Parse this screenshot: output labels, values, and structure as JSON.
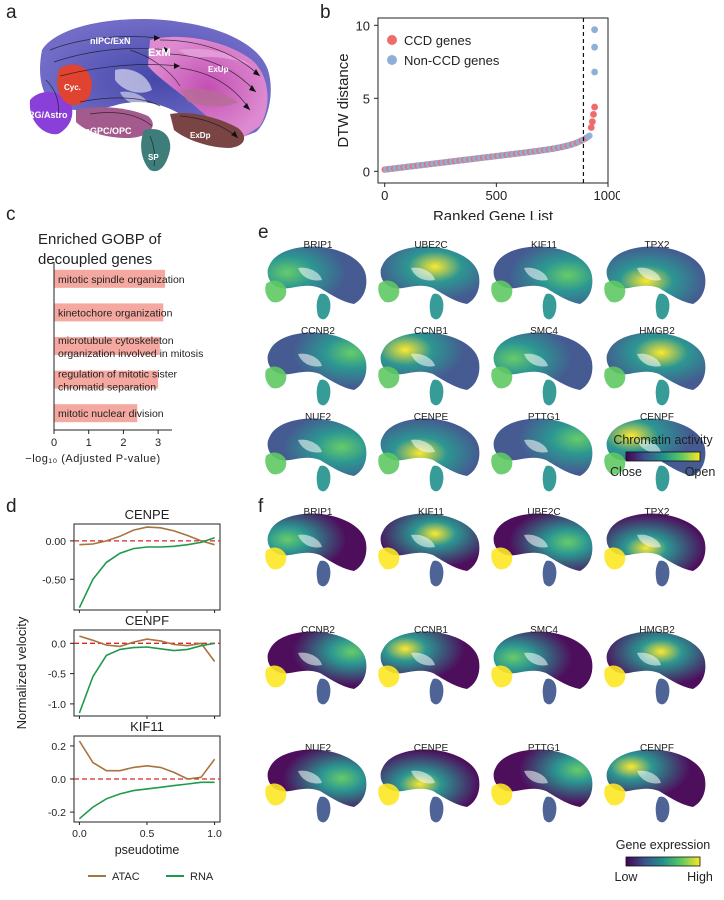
{
  "panels": {
    "a": {
      "letter": "a",
      "labels": [
        "nIPC/ExN",
        "ExM",
        "ExUp",
        "Cyc.",
        "RG/Astro",
        "mGPC/OPC",
        "ExDp",
        "SP"
      ]
    },
    "b": {
      "letter": "b"
    },
    "c": {
      "letter": "c"
    },
    "d": {
      "letter": "d"
    },
    "e": {
      "letter": "e"
    },
    "f": {
      "letter": "f"
    }
  },
  "colors": {
    "ccd": "#ee6b6b",
    "non_ccd": "#8eb0d8",
    "go_bar": "#f4a8a0",
    "atac": "#a8733e",
    "rna": "#1f9a4b",
    "zero_line": "#d62728"
  },
  "chart_data": [
    {
      "id": "b",
      "type": "scatter",
      "title": "",
      "xlabel": "Ranked Gene List",
      "ylabel": "DTW distance",
      "xlim": [
        -30,
        1000
      ],
      "ylim": [
        -0.8,
        10.5
      ],
      "xticks": [
        0,
        500,
        1000
      ],
      "yticks": [
        0,
        5,
        10
      ],
      "legend": [
        "CCD genes",
        "Non-CCD genes"
      ],
      "threshold_x": 890,
      "outliers": [
        {
          "series": "Non-CCD genes",
          "x": 940,
          "y": 9.7
        },
        {
          "series": "Non-CCD genes",
          "x": 940,
          "y": 8.5
        },
        {
          "series": "Non-CCD genes",
          "x": 940,
          "y": 6.8
        },
        {
          "series": "CCD genes",
          "x": 940,
          "y": 4.4
        },
        {
          "series": "CCD genes",
          "x": 935,
          "y": 3.9
        },
        {
          "series": "CCD genes",
          "x": 930,
          "y": 3.4
        },
        {
          "series": "CCD genes",
          "x": 925,
          "y": 3.0
        }
      ]
    },
    {
      "id": "c",
      "type": "bar",
      "orientation": "horizontal",
      "title": "Enriched GOBP of decoupled genes",
      "categories": [
        "mitotic spindle organization",
        "kinetochore organization",
        "microtubule cytoskeleton organization involved in mitosis",
        "regulation of mitotic sister chromatid separation",
        "mitotic nuclear division"
      ],
      "display_lines": [
        [
          "mitotic spindle organization"
        ],
        [
          "kinetochore organization"
        ],
        [
          "microtubule cytoskeleton",
          "organization involved in mitosis"
        ],
        [
          "regulation of mitotic sister",
          "chromatid separation"
        ],
        [
          "mitotic nuclear division"
        ]
      ],
      "values": [
        3.2,
        3.15,
        3.05,
        3.0,
        2.4
      ],
      "xlim": [
        0,
        3.4
      ],
      "xticks": [
        0,
        1,
        2,
        3
      ],
      "xlabel": "−log₁₀ (Adjusted P-value)"
    },
    {
      "id": "d",
      "type": "line",
      "xlabel": "pseudotime",
      "ylabel": "Normalized velocity",
      "legend": [
        "ATAC",
        "RNA"
      ],
      "x": [
        0,
        0.1,
        0.2,
        0.3,
        0.4,
        0.5,
        0.6,
        0.7,
        0.8,
        0.9,
        1.0
      ],
      "xticks": [
        0.0,
        0.5,
        1.0
      ],
      "subplots": [
        {
          "title": "CENPE",
          "ylim": [
            -0.9,
            0.22
          ],
          "yticks": [
            0.0,
            -0.5
          ],
          "ytick_labels": [
            "0.00",
            "-0.50"
          ],
          "series": [
            {
              "name": "ATAC",
              "values": [
                -0.05,
                -0.04,
                0.0,
                0.06,
                0.14,
                0.18,
                0.17,
                0.13,
                0.07,
                0.0,
                -0.05
              ]
            },
            {
              "name": "RNA",
              "values": [
                -0.87,
                -0.5,
                -0.28,
                -0.16,
                -0.1,
                -0.08,
                -0.08,
                -0.07,
                -0.05,
                -0.02,
                0.04
              ]
            }
          ]
        },
        {
          "title": "CENPF",
          "ylim": [
            -1.2,
            0.22
          ],
          "yticks": [
            0.0,
            -0.5,
            -1.0
          ],
          "ytick_labels": [
            "0.0",
            "-0.5",
            "-1.0"
          ],
          "series": [
            {
              "name": "ATAC",
              "values": [
                0.12,
                0.05,
                -0.03,
                -0.05,
                0.02,
                0.07,
                0.04,
                -0.02,
                -0.04,
                0.0,
                -0.3
              ]
            },
            {
              "name": "RNA",
              "values": [
                -1.15,
                -0.55,
                -0.2,
                -0.1,
                -0.07,
                -0.06,
                -0.09,
                -0.12,
                -0.1,
                -0.04,
                0.0
              ]
            }
          ]
        },
        {
          "title": "KIF11",
          "ylim": [
            -0.26,
            0.26
          ],
          "yticks": [
            0.2,
            0.0,
            -0.2
          ],
          "ytick_labels": [
            "0.2",
            "0.0",
            "-0.2"
          ],
          "series": [
            {
              "name": "ATAC",
              "values": [
                0.23,
                0.1,
                0.05,
                0.05,
                0.07,
                0.08,
                0.07,
                0.04,
                0.0,
                0.01,
                0.12
              ]
            },
            {
              "name": "RNA",
              "values": [
                -0.24,
                -0.17,
                -0.12,
                -0.09,
                -0.07,
                -0.06,
                -0.05,
                -0.04,
                -0.03,
                -0.02,
                -0.02
              ]
            }
          ]
        }
      ]
    },
    {
      "id": "e",
      "type": "heatmap",
      "genes": [
        "BRIP1",
        "UBE2C",
        "KIF11",
        "TPX2",
        "CCNB2",
        "CCNB1",
        "SMC4",
        "HMGB2",
        "NUF2",
        "CENPE",
        "PTTG1",
        "CENPF"
      ],
      "colorbar_title": "Chromatin activity",
      "colorbar_low": "Close",
      "colorbar_high": "Open"
    },
    {
      "id": "f",
      "type": "heatmap",
      "genes": [
        "BRIP1",
        "KIF11",
        "UBE2C",
        "TPX2",
        "CCNB2",
        "CCNB1",
        "SMC4",
        "HMGB2",
        "NUF2",
        "CENPE",
        "PTTG1",
        "CENPF"
      ],
      "colorbar_title": "Gene expression",
      "colorbar_low": "Low",
      "colorbar_high": "High"
    }
  ]
}
